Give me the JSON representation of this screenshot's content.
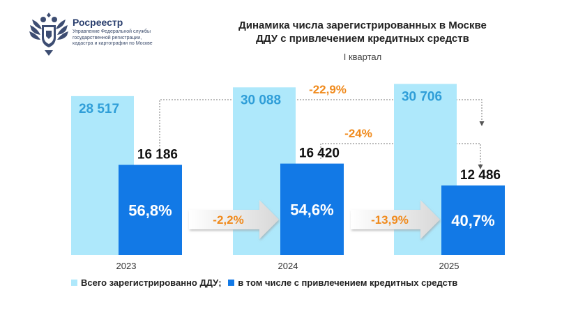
{
  "header": {
    "org_name": "Росреестр",
    "org_sub": "Управление Федеральной службы государственной регистрации, кадастра и картографии по Москве",
    "logo_icon": "double-headed-eagle-emblem-icon"
  },
  "chart_data": {
    "type": "bar",
    "title_lines": [
      "Динамика числа зарегистрированных в Москве",
      "ДДУ с привлечением кредитных средств"
    ],
    "subtitle": "I квартал",
    "categories": [
      "2023",
      "2024",
      "2025"
    ],
    "series": [
      {
        "name": "Всего зарегистрированно ДДУ",
        "color": "#aee8fb",
        "values": [
          28517,
          30088,
          30706
        ],
        "labels": [
          "28 517",
          "30 088",
          "30 706"
        ]
      },
      {
        "name": "в том числе с привлечением кредитных средств",
        "color": "#1279e6",
        "values": [
          16186,
          16420,
          12486
        ],
        "labels": [
          "16 186",
          "16 420",
          "12 486"
        ],
        "share_labels": [
          "56,8%",
          "54,6%",
          "40,7%"
        ]
      }
    ],
    "ylim": [
      0,
      40000
    ],
    "arrows": [
      {
        "from": "2023",
        "to": "2024",
        "label": "-2,2%"
      },
      {
        "from": "2024",
        "to": "2025",
        "label": "-13,9%"
      }
    ],
    "brackets": [
      {
        "from": "2023",
        "to": "2025",
        "label": "-22,9%"
      },
      {
        "from": "2024",
        "to": "2025",
        "label": "-24%"
      }
    ],
    "legend_sep": ";",
    "legend_position": "bottom",
    "grid": false
  }
}
